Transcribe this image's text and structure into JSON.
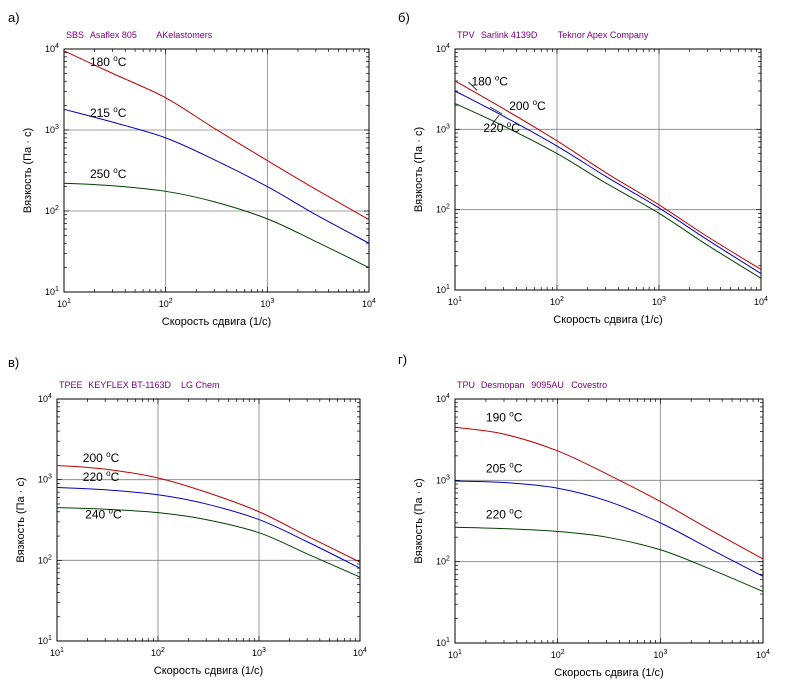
{
  "chart_data": [
    {
      "type": "line",
      "panel_label": "а)",
      "subtitle": [
        "SBS",
        "Asaflex 805",
        "AKelastomers"
      ],
      "subtitle_color": "#800080",
      "xlabel": "Скорость сдвига (1/с)",
      "ylabel": "Вязкость (Па · с)",
      "x_scale": "log",
      "y_scale": "log",
      "xlim": [
        10,
        10000
      ],
      "ylim": [
        10,
        10000
      ],
      "x_ticks": [
        {
          "base": "10",
          "exp": "1"
        },
        {
          "base": "10",
          "exp": "2"
        },
        {
          "base": "10",
          "exp": "3"
        },
        {
          "base": "10",
          "exp": "4"
        }
      ],
      "y_ticks": [
        {
          "base": "10",
          "exp": "1"
        },
        {
          "base": "10",
          "exp": "2"
        },
        {
          "base": "10",
          "exp": "3"
        },
        {
          "base": "10",
          "exp": "4"
        }
      ],
      "grid": true,
      "series": [
        {
          "name": "180 °C",
          "label_text": "180",
          "label_exp": "o",
          "label_unit": "C",
          "color": "#c00000",
          "x": [
            10,
            30,
            100,
            300,
            1000,
            3000,
            10000
          ],
          "y": [
            9500,
            5000,
            2500,
            1050,
            420,
            185,
            78
          ]
        },
        {
          "name": "215 °C",
          "label_text": "215",
          "label_exp": "o",
          "label_unit": "C",
          "color": "#0000c0",
          "x": [
            10,
            30,
            100,
            300,
            1000,
            3000,
            10000
          ],
          "y": [
            1800,
            1250,
            800,
            430,
            200,
            90,
            40
          ]
        },
        {
          "name": "250 °C",
          "label_text": "250",
          "label_exp": "o",
          "label_unit": "C",
          "color": "#004000",
          "x": [
            10,
            30,
            100,
            300,
            1000,
            3000,
            10000
          ],
          "y": [
            220,
            205,
            175,
            130,
            80,
            42,
            20
          ]
        }
      ]
    },
    {
      "type": "line",
      "panel_label": "б)",
      "subtitle": [
        "TPV",
        "Sarlink 4139D",
        "Teknor Apex Company"
      ],
      "subtitle_color": "#800080",
      "xlabel": "Скорость сдвига (1/с)",
      "ylabel": "Вязкость (Па · с)",
      "x_scale": "log",
      "y_scale": "log",
      "xlim": [
        10,
        10000
      ],
      "ylim": [
        10,
        10000
      ],
      "x_ticks": [
        {
          "base": "10",
          "exp": "1"
        },
        {
          "base": "10",
          "exp": "2"
        },
        {
          "base": "10",
          "exp": "3"
        },
        {
          "base": "10",
          "exp": "4"
        }
      ],
      "y_ticks": [
        {
          "base": "10",
          "exp": "1"
        },
        {
          "base": "10",
          "exp": "2"
        },
        {
          "base": "10",
          "exp": "3"
        },
        {
          "base": "10",
          "exp": "4"
        }
      ],
      "grid": true,
      "series": [
        {
          "name": "180 °C",
          "label_text": "180",
          "label_exp": "o",
          "label_unit": "C",
          "color": "#c00000",
          "x": [
            10,
            30,
            100,
            300,
            1000,
            3000,
            10000
          ],
          "y": [
            4000,
            1800,
            720,
            290,
            115,
            46,
            18
          ]
        },
        {
          "name": "200 °C",
          "label_text": "200",
          "label_exp": "o",
          "label_unit": "C",
          "color": "#0000c0",
          "x": [
            10,
            30,
            100,
            300,
            1000,
            3000,
            10000
          ],
          "y": [
            3000,
            1450,
            620,
            260,
            105,
            42,
            16
          ]
        },
        {
          "name": "220 °C",
          "label_text": "220",
          "label_exp": "o",
          "label_unit": "C",
          "color": "#004000",
          "x": [
            10,
            30,
            100,
            300,
            1000,
            3000,
            10000
          ],
          "y": [
            2100,
            1100,
            500,
            215,
            90,
            36,
            14
          ]
        }
      ]
    },
    {
      "type": "line",
      "panel_label": "в)",
      "subtitle": [
        "TPEE",
        "KEYFLEX BT-1163D",
        "LG Chem"
      ],
      "subtitle_color": "#800080",
      "xlabel": "Скорость сдвига (1/с)",
      "ylabel": "Вязкость (Па · с)",
      "x_scale": "log",
      "y_scale": "log",
      "xlim": [
        10,
        10000
      ],
      "ylim": [
        10,
        10000
      ],
      "x_ticks": [
        {
          "base": "10",
          "exp": "1"
        },
        {
          "base": "10",
          "exp": "2"
        },
        {
          "base": "10",
          "exp": "3"
        },
        {
          "base": "10",
          "exp": "4"
        }
      ],
      "y_ticks": [
        {
          "base": "10",
          "exp": "1"
        },
        {
          "base": "10",
          "exp": "2"
        },
        {
          "base": "10",
          "exp": "3"
        },
        {
          "base": "10",
          "exp": "4"
        }
      ],
      "grid": true,
      "series": [
        {
          "name": "200 °C",
          "label_text": "200",
          "label_exp": "o",
          "label_unit": "C",
          "color": "#c00000",
          "x": [
            10,
            30,
            100,
            300,
            1000,
            3000,
            10000
          ],
          "y": [
            1500,
            1350,
            1050,
            700,
            400,
            200,
            95
          ]
        },
        {
          "name": "220 °C",
          "label_text": "220",
          "label_exp": "o",
          "label_unit": "C",
          "color": "#0000c0",
          "x": [
            10,
            30,
            100,
            300,
            1000,
            3000,
            10000
          ],
          "y": [
            800,
            750,
            650,
            500,
            320,
            170,
            80
          ]
        },
        {
          "name": "240 °C",
          "label_text": "240",
          "label_exp": "o",
          "label_unit": "C",
          "color": "#004000",
          "x": [
            10,
            30,
            100,
            300,
            1000,
            3000,
            10000
          ],
          "y": [
            450,
            430,
            390,
            320,
            220,
            120,
            62
          ]
        }
      ]
    },
    {
      "type": "line",
      "panel_label": "г)",
      "subtitle": [
        "TPU",
        "Desmopan",
        "9095AU",
        "Covestro"
      ],
      "subtitle_color": "#800080",
      "xlabel": "Скорость сдвига (1/с)",
      "ylabel": "Вязкость (Па · с)",
      "x_scale": "log",
      "y_scale": "log",
      "xlim": [
        10,
        10000
      ],
      "ylim": [
        10,
        10000
      ],
      "x_ticks": [
        {
          "base": "10",
          "exp": "1"
        },
        {
          "base": "10",
          "exp": "2"
        },
        {
          "base": "10",
          "exp": "3"
        },
        {
          "base": "10",
          "exp": "4"
        }
      ],
      "y_ticks": [
        {
          "base": "10",
          "exp": "1"
        },
        {
          "base": "10",
          "exp": "2"
        },
        {
          "base": "10",
          "exp": "3"
        },
        {
          "base": "10",
          "exp": "4"
        }
      ],
      "grid": true,
      "series": [
        {
          "name": "190 °C",
          "label_text": "190",
          "label_exp": "o",
          "label_unit": "C",
          "color": "#c00000",
          "x": [
            10,
            30,
            100,
            300,
            1000,
            3000,
            10000
          ],
          "y": [
            4500,
            3700,
            2300,
            1200,
            550,
            250,
            108
          ]
        },
        {
          "name": "205 °C",
          "label_text": "205",
          "label_exp": "o",
          "label_unit": "C",
          "color": "#0000c0",
          "x": [
            10,
            30,
            100,
            300,
            1000,
            3000,
            10000
          ],
          "y": [
            980,
            940,
            800,
            560,
            300,
            145,
            66
          ]
        },
        {
          "name": "220 °C",
          "label_text": "220",
          "label_exp": "o",
          "label_unit": "C",
          "color": "#004000",
          "x": [
            10,
            30,
            100,
            300,
            1000,
            3000,
            10000
          ],
          "y": [
            265,
            255,
            235,
            200,
            140,
            82,
            43
          ]
        }
      ]
    }
  ]
}
